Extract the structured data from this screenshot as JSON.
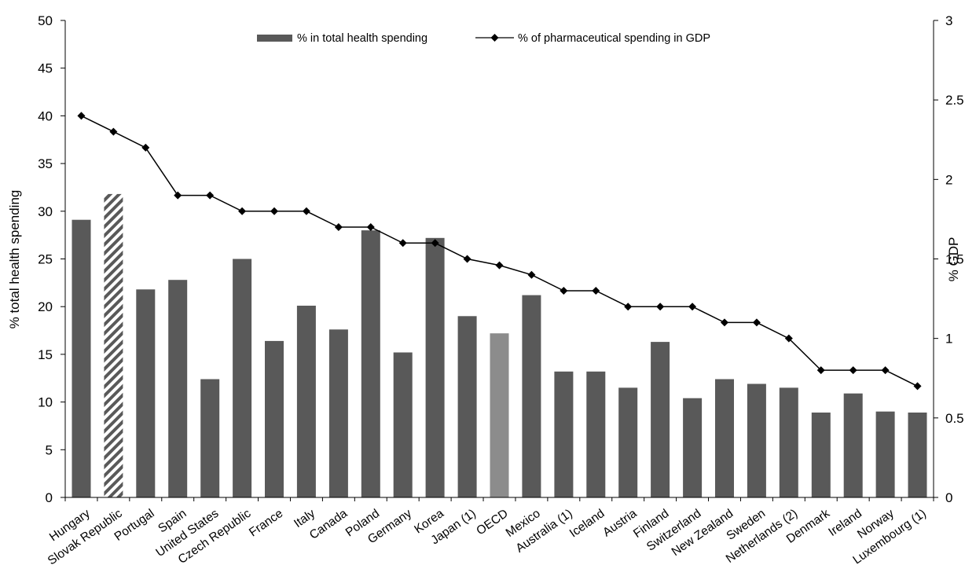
{
  "chart_data": {
    "type": "bar",
    "categories": [
      "Hungary",
      "Slovak Republic",
      "Portugal",
      "Spain",
      "United States",
      "Czech Republic",
      "France",
      "Italy",
      "Canada",
      "Poland",
      "Germany",
      "Korea",
      "Japan (1)",
      "OECD",
      "Mexico",
      "Australia (1)",
      "Iceland",
      "Austria",
      "Finland",
      "Switzerland",
      "New Zealand",
      "Sweden",
      "Netherlands (2)",
      "Denmark",
      "Ireland",
      "Norway",
      "Luxembourg (1)"
    ],
    "series": [
      {
        "name": "% in total health spending",
        "type": "bar",
        "axis": "left",
        "values": [
          29.1,
          31.8,
          21.8,
          22.8,
          12.4,
          25.0,
          16.4,
          20.1,
          17.6,
          28.0,
          15.2,
          27.2,
          19.0,
          17.2,
          21.2,
          13.2,
          13.2,
          11.5,
          16.3,
          10.4,
          12.4,
          11.9,
          11.5,
          8.9,
          10.9,
          9.0,
          8.9
        ]
      },
      {
        "name": "% of pharmaceutical spending in GDP",
        "type": "line",
        "axis": "right",
        "values": [
          2.4,
          2.3,
          2.2,
          1.9,
          1.9,
          1.8,
          1.8,
          1.8,
          1.7,
          1.7,
          1.6,
          1.6,
          1.5,
          1.46,
          1.4,
          1.3,
          1.3,
          1.2,
          1.2,
          1.2,
          1.1,
          1.1,
          1.0,
          0.8,
          0.8,
          0.8,
          0.7
        ]
      }
    ],
    "highlight": {
      "Slovak Republic": "hatched",
      "OECD": "light-grey"
    },
    "ylabel": "% total health spending",
    "y2label": "% GDP",
    "ylim": [
      0,
      50
    ],
    "y2lim": [
      0,
      3
    ],
    "yticks": [
      "0",
      "5",
      "10",
      "15",
      "20",
      "25",
      "30",
      "35",
      "40",
      "45",
      "50"
    ],
    "y2ticks": [
      "0",
      "0.5",
      "1",
      "1.5",
      "2",
      "2.5",
      "3"
    ],
    "legend_position": "top-center",
    "grid": false,
    "colors": {
      "bar": "#595959",
      "bar_oecd": "#8c8c8c",
      "hatch": "#595959",
      "line": "#000000"
    }
  }
}
